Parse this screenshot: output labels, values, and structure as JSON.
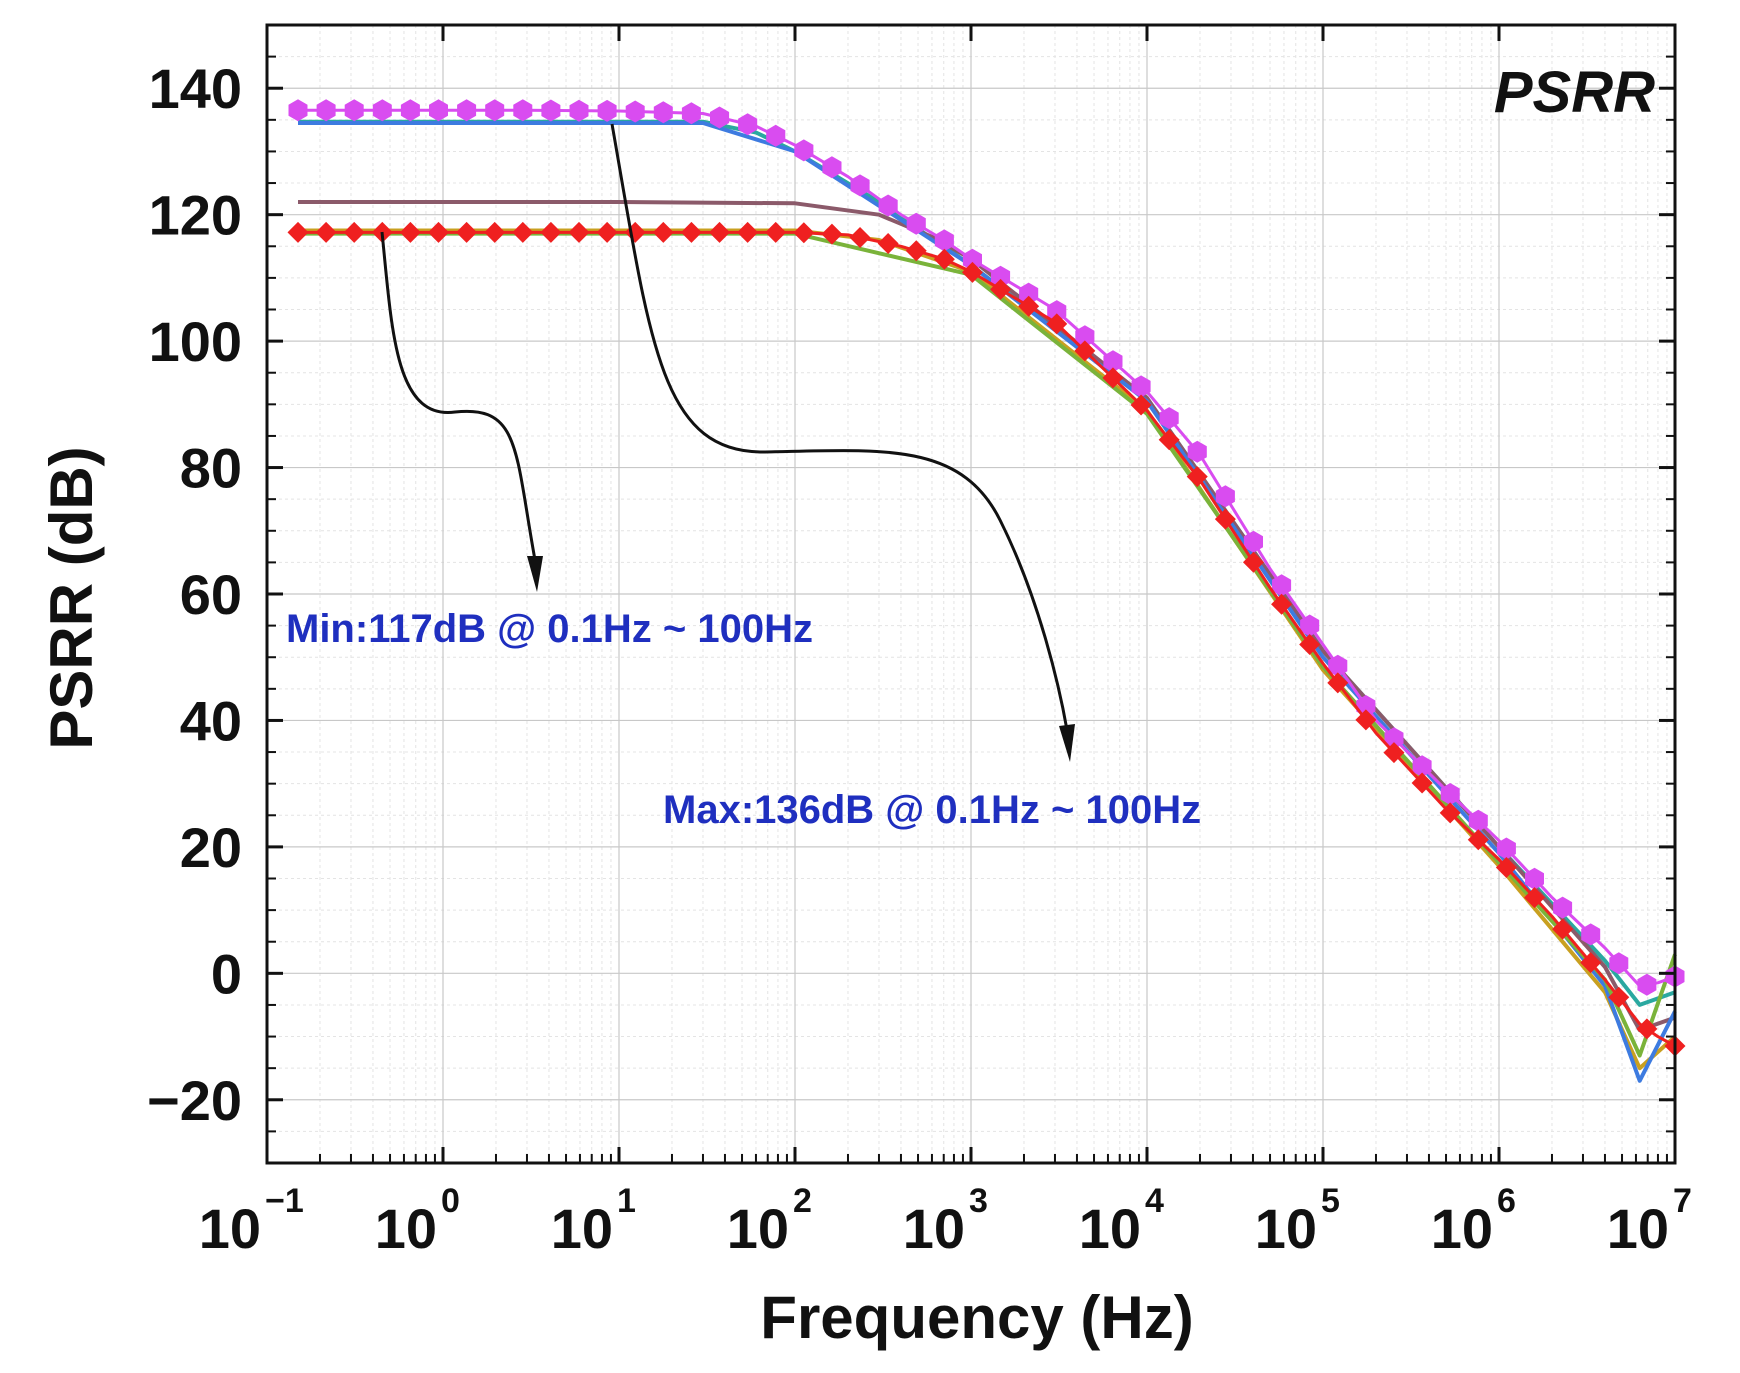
{
  "chart_data": {
    "type": "line",
    "title": "PSRR",
    "xlabel": "Frequency (Hz)",
    "ylabel": "PSRR (dB)",
    "xscale": "log",
    "xlim": [
      0.1,
      10000000
    ],
    "ylim": [
      -30,
      150
    ],
    "grid": true,
    "x_ticks": [
      {
        "base": "10",
        "exp": "−1",
        "value": 0.1
      },
      {
        "base": "10",
        "exp": "0",
        "value": 1
      },
      {
        "base": "10",
        "exp": "1",
        "value": 10
      },
      {
        "base": "10",
        "exp": "2",
        "value": 100
      },
      {
        "base": "10",
        "exp": "3",
        "value": 1000
      },
      {
        "base": "10",
        "exp": "4",
        "value": 10000
      },
      {
        "base": "10",
        "exp": "5",
        "value": 100000
      },
      {
        "base": "10",
        "exp": "6",
        "value": 1000000
      },
      {
        "base": "10",
        "exp": "7",
        "value": 10000000
      }
    ],
    "y_ticks": [
      {
        "label": "−20",
        "value": -20
      },
      {
        "label": "0",
        "value": 0
      },
      {
        "label": "20",
        "value": 20
      },
      {
        "label": "40",
        "value": 40
      },
      {
        "label": "60",
        "value": 60
      },
      {
        "label": "80",
        "value": 80
      },
      {
        "label": "100",
        "value": 100
      },
      {
        "label": "120",
        "value": 120
      },
      {
        "label": "140",
        "value": 140
      }
    ],
    "series": [
      {
        "marker": "hexagon",
        "color": "#d94cf0",
        "points": [
          [
            0.15,
            136.5
          ],
          [
            0.3,
            136.5
          ],
          [
            1,
            136.5
          ],
          [
            3,
            136.5
          ],
          [
            10,
            136.4
          ],
          [
            30,
            136
          ],
          [
            60,
            134
          ],
          [
            100,
            131
          ],
          [
            200,
            126
          ],
          [
            400,
            120
          ],
          [
            700,
            116
          ],
          [
            1000,
            113
          ],
          [
            3000,
            105
          ],
          [
            10000,
            92
          ],
          [
            20000,
            82
          ],
          [
            50000,
            64
          ],
          [
            100000,
            52
          ],
          [
            200000,
            40
          ],
          [
            500000,
            29
          ],
          [
            1000000,
            21
          ],
          [
            2000000,
            12
          ],
          [
            4000000,
            4
          ],
          [
            6300000,
            -2
          ],
          [
            8000000,
            -1.5
          ],
          [
            10000000,
            -0.5
          ]
        ]
      },
      {
        "marker": "diamond",
        "color": "#ef2020",
        "points": [
          [
            0.15,
            117.2
          ],
          [
            0.3,
            117.2
          ],
          [
            1,
            117.2
          ],
          [
            10,
            117.2
          ],
          [
            100,
            117.2
          ],
          [
            200,
            116.8
          ],
          [
            400,
            115
          ],
          [
            700,
            113
          ],
          [
            1000,
            111
          ],
          [
            3000,
            103
          ],
          [
            10000,
            89
          ],
          [
            20000,
            78
          ],
          [
            50000,
            61
          ],
          [
            100000,
            49
          ],
          [
            200000,
            38
          ],
          [
            500000,
            26
          ],
          [
            1000000,
            18
          ],
          [
            2000000,
            9
          ],
          [
            4000000,
            -1
          ],
          [
            6300000,
            -8
          ],
          [
            8000000,
            -10
          ],
          [
            10000000,
            -11.5
          ]
        ]
      },
      {
        "marker": "none",
        "color": "#2aa8a0",
        "points": [
          [
            0.15,
            134.7
          ],
          [
            30,
            134.7
          ],
          [
            60,
            133
          ],
          [
            100,
            130
          ],
          [
            300,
            122
          ],
          [
            1000,
            112
          ],
          [
            10000,
            91
          ],
          [
            100000,
            51
          ],
          [
            1000000,
            20
          ],
          [
            4000000,
            2
          ],
          [
            6300000,
            -5
          ],
          [
            10000000,
            -3
          ]
        ]
      },
      {
        "marker": "none",
        "color": "#8b5a6a",
        "points": [
          [
            0.15,
            122
          ],
          [
            10,
            122
          ],
          [
            100,
            121.8
          ],
          [
            300,
            120
          ],
          [
            600,
            116.5
          ],
          [
            1000,
            113
          ],
          [
            10000,
            91
          ],
          [
            100000,
            51
          ],
          [
            1000000,
            20
          ],
          [
            4000000,
            1
          ],
          [
            6300000,
            -9
          ],
          [
            10000000,
            -7
          ]
        ]
      },
      {
        "marker": "none",
        "color": "#c9a020",
        "points": [
          [
            0.15,
            117.5
          ],
          [
            100,
            117.5
          ],
          [
            300,
            116
          ],
          [
            1000,
            111
          ],
          [
            10000,
            89
          ],
          [
            100000,
            48
          ],
          [
            1000000,
            17
          ],
          [
            4000000,
            -3
          ],
          [
            6300000,
            -15
          ],
          [
            10000000,
            -10
          ]
        ]
      },
      {
        "marker": "none",
        "color": "#3d7be0",
        "points": [
          [
            0.15,
            134.5
          ],
          [
            30,
            134.5
          ],
          [
            100,
            130
          ],
          [
            1000,
            112
          ],
          [
            10000,
            90.5
          ],
          [
            100000,
            50
          ],
          [
            1000000,
            19
          ],
          [
            4000000,
            -2
          ],
          [
            6300000,
            -17
          ],
          [
            10000000,
            -6
          ]
        ]
      },
      {
        "marker": "none",
        "color": "#7ab33a",
        "points": [
          [
            0.15,
            117
          ],
          [
            100,
            117
          ],
          [
            1000,
            110.5
          ],
          [
            10000,
            88.5
          ],
          [
            100000,
            48.5
          ],
          [
            1000000,
            17.5
          ],
          [
            4000000,
            -1
          ],
          [
            6300000,
            -13
          ],
          [
            10000000,
            3
          ]
        ]
      }
    ],
    "annotations": [
      {
        "text": "Min:117dB @ 0.1Hz ~ 100Hz"
      },
      {
        "text": "Max:136dB @ 0.1Hz ~ 100Hz"
      }
    ]
  }
}
